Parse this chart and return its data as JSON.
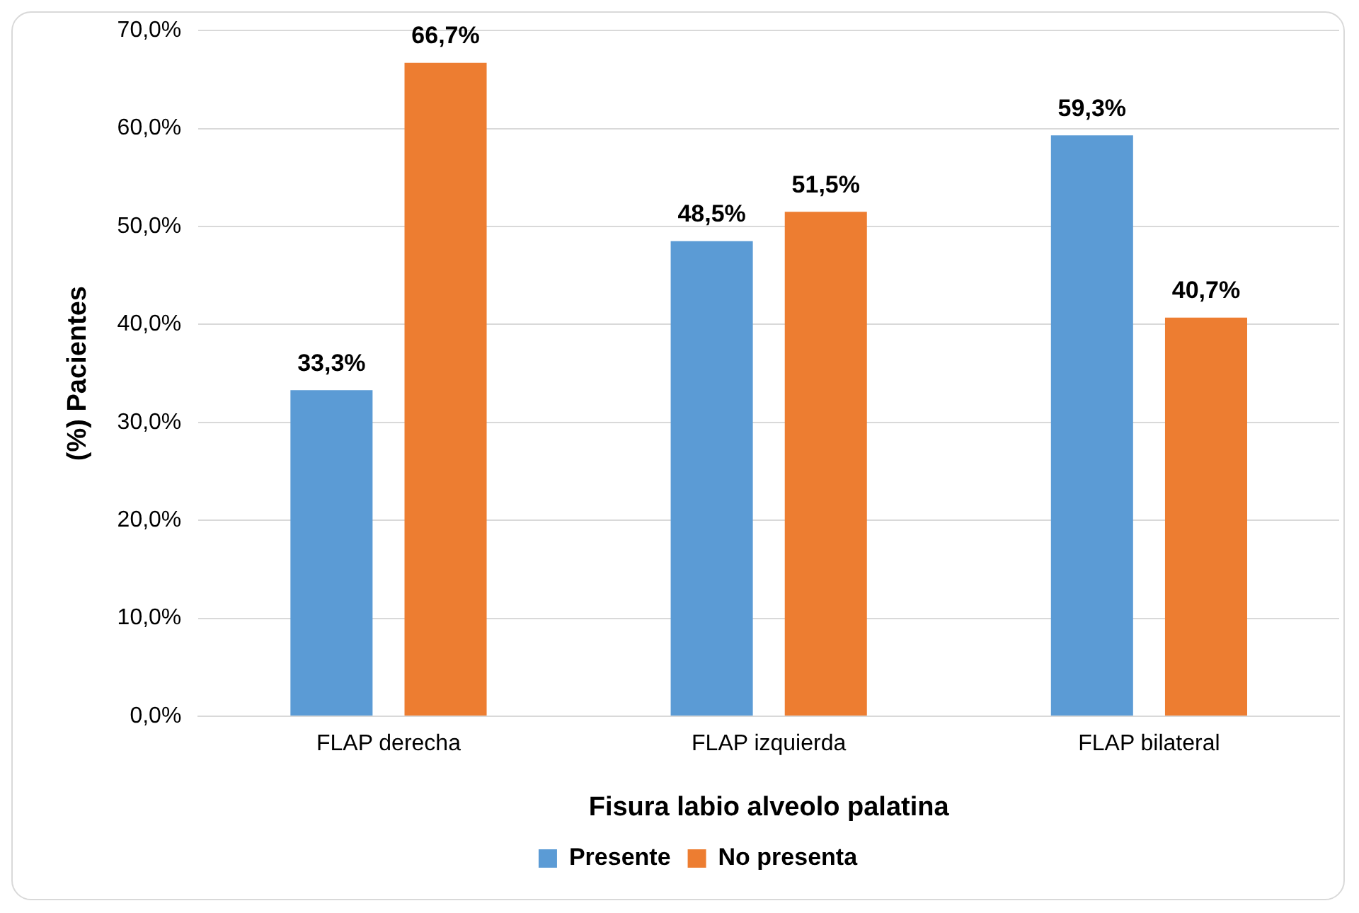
{
  "chart_data": {
    "type": "bar",
    "xlabel": "Fisura labio alveolo palatina",
    "ylabel": "(%) Pacientes",
    "categories": [
      "FLAP derecha",
      "FLAP izquierda",
      "FLAP bilateral"
    ],
    "series": [
      {
        "name": "Presente",
        "color": "#5b9bd5",
        "values": [
          33.3,
          48.5,
          59.3
        ],
        "value_labels": [
          "33,3%",
          "48,5%",
          "59,3%"
        ]
      },
      {
        "name": "No presenta",
        "color": "#ed7d31",
        "values": [
          66.7,
          51.5,
          40.7
        ],
        "value_labels": [
          "66,7%",
          "51,5%",
          "40,7%"
        ]
      }
    ],
    "ylim": [
      0,
      70
    ],
    "yticks": [
      {
        "value": 0,
        "label": "0,0%"
      },
      {
        "value": 10,
        "label": "10,0%"
      },
      {
        "value": 20,
        "label": "20,0%"
      },
      {
        "value": 30,
        "label": "30,0%"
      },
      {
        "value": 40,
        "label": "40,0%"
      },
      {
        "value": 50,
        "label": "50,0%"
      },
      {
        "value": 60,
        "label": "60,0%"
      },
      {
        "value": 70,
        "label": "70,0%"
      }
    ],
    "grid": "y",
    "legend": "bottom"
  }
}
